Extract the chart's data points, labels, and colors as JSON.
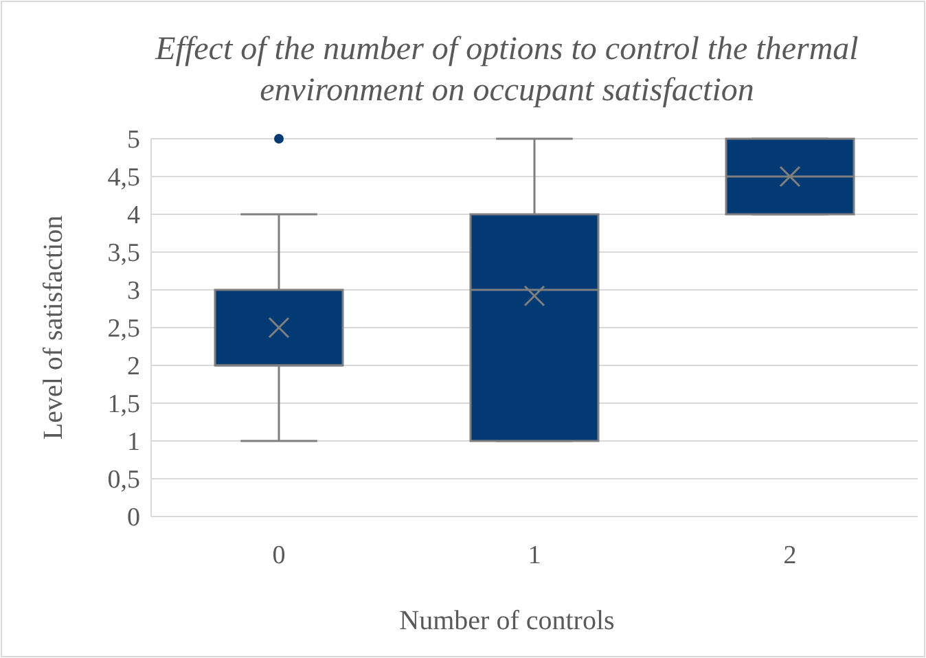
{
  "chart_data": {
    "type": "box",
    "title": "Effect of the number of options to control the thermal environment on occupant satisfaction",
    "xlabel": "Number of controls",
    "ylabel": "Level of satisfaction",
    "categories": [
      "0",
      "1",
      "2"
    ],
    "boxes": [
      {
        "low": 1,
        "q1": 2,
        "median": 2,
        "q3": 3,
        "high": 4,
        "mean": 2.5,
        "outliers": [
          5
        ]
      },
      {
        "low": 1,
        "q1": 1,
        "median": 3,
        "q3": 4,
        "high": 5,
        "mean": 2.92
      },
      {
        "low": 4,
        "q1": 4,
        "median": 4.5,
        "q3": 5,
        "high": 5,
        "mean": 4.5
      }
    ],
    "color": "#043a73",
    "ylim": [
      0,
      5
    ],
    "yticks": [
      0,
      {
        "value": 0.5,
        "label": "0,5"
      },
      1,
      {
        "value": 1.5,
        "label": "1,5"
      },
      2,
      {
        "value": 2.5,
        "label": "2,5"
      },
      3,
      {
        "value": 3.5,
        "label": "3,5"
      },
      4,
      {
        "value": 4.5,
        "label": "4,5"
      },
      5
    ],
    "grid": "y"
  }
}
